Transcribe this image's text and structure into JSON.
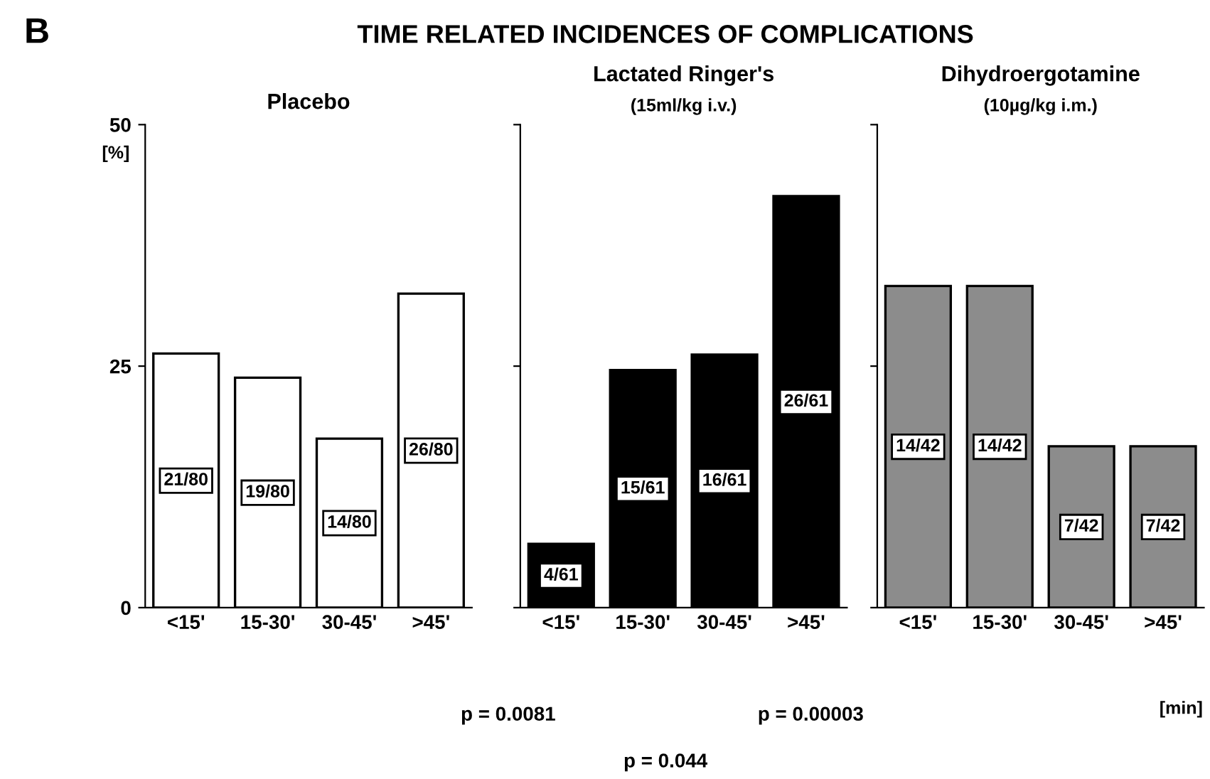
{
  "chart_data": [
    {
      "type": "bar",
      "title": "Placebo",
      "ylabel": "[%]",
      "categories": [
        "<15'",
        "15-30'",
        "30-45'",
        ">45'"
      ],
      "values": [
        26.3,
        23.8,
        17.5,
        32.5
      ],
      "value_labels": [
        "21/80",
        "19/80",
        "14/80",
        "26/80"
      ],
      "color": "#ffffff",
      "ylim": [
        0,
        50
      ],
      "yticks": [
        0,
        25,
        50
      ],
      "grid": false,
      "annotations": [
        "B",
        "TIME RELATED INCIDENCES OF COMPLICATIONS",
        "p = 0.0081",
        "p = 0.00003",
        "p = 0.044"
      ]
    },
    {
      "type": "bar",
      "title": "Lactated Ringer's",
      "subtitle": "(15ml/kg i.v.)",
      "categories": [
        "<15'",
        "15-30'",
        "30-45'",
        ">45'"
      ],
      "values": [
        6.6,
        24.6,
        26.2,
        42.6
      ],
      "value_labels": [
        "4/61",
        "15/61",
        "16/61",
        "26/61"
      ],
      "color": "#000000",
      "ylim": [
        0,
        50
      ],
      "yticks": [
        0,
        25,
        50
      ],
      "tick_labels": "x",
      "grid": false
    },
    {
      "type": "bar",
      "title": "Dihydroergotamine",
      "subtitle": "(10µg/kg i.m.)",
      "xlabel": "[min]",
      "categories": [
        "<15'",
        "15-30'",
        "30-45'",
        ">45'"
      ],
      "values": [
        33.3,
        33.3,
        16.7,
        16.7
      ],
      "value_labels": [
        "14/42",
        "14/42",
        "7/42",
        "7/42"
      ],
      "color": "#8c8c8c",
      "ylim": [
        0,
        50
      ],
      "yticks": [
        0,
        25,
        50
      ],
      "tick_labels": "x",
      "grid": false
    }
  ]
}
